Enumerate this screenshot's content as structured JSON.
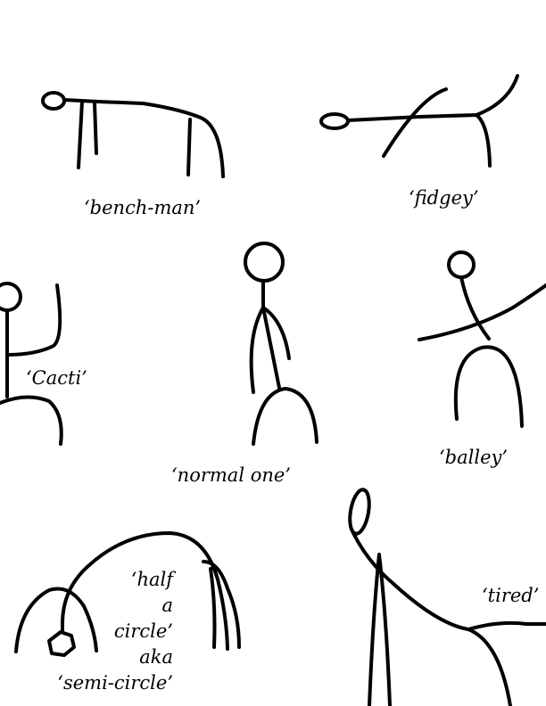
{
  "figures": [
    {
      "id": "bench-man",
      "caption": "‘bench-man’"
    },
    {
      "id": "fidgey",
      "caption": "‘fidgey’"
    },
    {
      "id": "cacti",
      "caption": "‘Cacti’"
    },
    {
      "id": "normal-one",
      "caption": "‘normal one’"
    },
    {
      "id": "balley",
      "caption": "‘balley’"
    },
    {
      "id": "half-circle",
      "caption_lines": [
        "‘half",
        "a",
        "circle’",
        "aka",
        "‘semi-circle’"
      ]
    },
    {
      "id": "tired",
      "caption": "‘tired’"
    }
  ],
  "colors": {
    "ink": "#000000",
    "paper": "#ffffff"
  }
}
